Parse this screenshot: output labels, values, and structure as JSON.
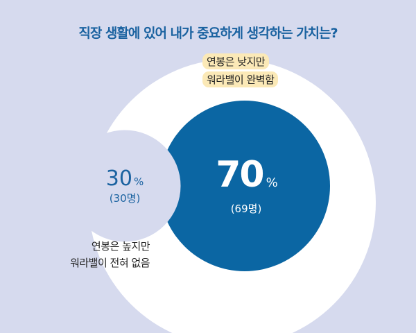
{
  "chart_data": {
    "type": "bubble",
    "title": "직장 생활에 있어 내가 중요하게 생각하는 가치는?",
    "unit": "%",
    "series": [
      {
        "name_lines": [
          "연봉은 낮지만",
          "워라밸이 완벽함"
        ],
        "value": 70,
        "count_label": "(69명)",
        "color": "#0b66a3"
      },
      {
        "name_lines": [
          "연봉은 높지만",
          "워라밸이 전혀 없음"
        ],
        "value": 30,
        "count_label": "(30명)",
        "color": "#d6daee"
      }
    ]
  },
  "colors": {
    "background": "#d6daee",
    "outer_circle": "#ffffff",
    "title": "#1a62a0",
    "highlight": "#fbe9b7"
  }
}
